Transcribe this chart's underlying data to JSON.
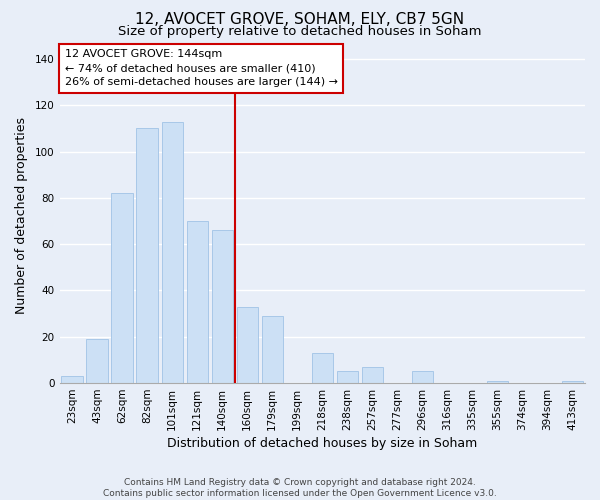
{
  "title": "12, AVOCET GROVE, SOHAM, ELY, CB7 5GN",
  "subtitle": "Size of property relative to detached houses in Soham",
  "xlabel": "Distribution of detached houses by size in Soham",
  "ylabel": "Number of detached properties",
  "bar_labels": [
    "23sqm",
    "43sqm",
    "62sqm",
    "82sqm",
    "101sqm",
    "121sqm",
    "140sqm",
    "160sqm",
    "179sqm",
    "199sqm",
    "218sqm",
    "238sqm",
    "257sqm",
    "277sqm",
    "296sqm",
    "316sqm",
    "335sqm",
    "355sqm",
    "374sqm",
    "394sqm",
    "413sqm"
  ],
  "bar_values": [
    3,
    19,
    82,
    110,
    113,
    70,
    66,
    33,
    29,
    0,
    13,
    5,
    7,
    0,
    5,
    0,
    0,
    1,
    0,
    0,
    1
  ],
  "bar_color": "#cce0f5",
  "bar_edge_color": "#a8c8e8",
  "vline_x_index": 6,
  "vline_color": "#cc0000",
  "annotation_line1": "12 AVOCET GROVE: 144sqm",
  "annotation_line2": "← 74% of detached houses are smaller (410)",
  "annotation_line3": "26% of semi-detached houses are larger (144) →",
  "annotation_box_color": "#ffffff",
  "annotation_box_edge_color": "#cc0000",
  "ylim": [
    0,
    145
  ],
  "yticks": [
    0,
    20,
    40,
    60,
    80,
    100,
    120,
    140
  ],
  "footer_text": "Contains HM Land Registry data © Crown copyright and database right 2024.\nContains public sector information licensed under the Open Government Licence v3.0.",
  "background_color": "#e8eef8",
  "plot_bg_color": "#e8eef8",
  "grid_color": "#ffffff",
  "title_fontsize": 11,
  "subtitle_fontsize": 9.5,
  "label_fontsize": 9,
  "tick_fontsize": 7.5,
  "footer_fontsize": 6.5
}
